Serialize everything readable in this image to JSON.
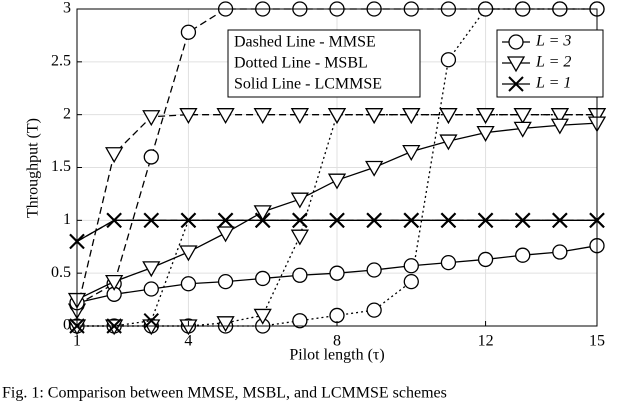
{
  "chart_data": {
    "type": "line",
    "x": [
      1,
      2,
      3,
      4,
      5,
      6,
      7,
      8,
      9,
      10,
      11,
      12,
      13,
      14,
      15
    ],
    "xlim": [
      1,
      15
    ],
    "xticks": [
      1,
      4,
      8,
      12,
      15
    ],
    "ylim": [
      0,
      3
    ],
    "yticks": [
      0,
      0.5,
      1,
      1.5,
      2,
      2.5,
      3
    ],
    "grid": true,
    "xlabel": "Pilot length (τ)",
    "ylabel": "Throughput (T)",
    "annotations": [
      "Dashed Line - MMSE",
      "Dotted Line - MSBL",
      "Solid Line - LCMMSE"
    ],
    "legend": [
      {
        "name": "L = 3",
        "marker": "circle"
      },
      {
        "name": "L = 2",
        "marker": "triangle"
      },
      {
        "name": "L = 1",
        "marker": "x"
      }
    ],
    "legend_position": "upper right",
    "caption": "Fig. 1: Comparison between MMSE, MSBL, and LCMMSE schemes",
    "series": [
      {
        "marker": "circle",
        "linestyle": "dashed",
        "color": "#000000",
        "values": [
          0.2,
          0.4,
          1.6,
          2.78,
          3,
          3,
          3,
          3,
          3,
          3,
          3,
          3,
          3,
          3,
          3
        ]
      },
      {
        "marker": "triangle",
        "linestyle": "dashed",
        "color": "#000000",
        "values": [
          0.15,
          1.63,
          1.98,
          2,
          2,
          2,
          2,
          2,
          2,
          2,
          2,
          2,
          2,
          2,
          2
        ]
      },
      {
        "marker": "x",
        "linestyle": "dashed",
        "color": "#000000",
        "values": [
          0.8,
          1,
          1,
          1,
          1,
          1,
          1,
          1,
          1,
          1,
          1,
          1,
          1,
          1,
          1
        ]
      },
      {
        "marker": "circle",
        "linestyle": "dotted",
        "color": "#000000",
        "values": [
          0,
          0,
          0,
          0,
          0,
          0,
          0.05,
          0.1,
          0.15,
          0.42,
          2.52,
          3,
          3,
          3,
          3
        ]
      },
      {
        "marker": "triangle",
        "linestyle": "dotted",
        "color": "#000000",
        "values": [
          0,
          0,
          0,
          0,
          0.03,
          0.1,
          0.85,
          2,
          2,
          2,
          2,
          2,
          2,
          2,
          2
        ]
      },
      {
        "marker": "x",
        "linestyle": "dotted",
        "color": "#000000",
        "values": [
          0,
          0,
          0.05,
          1,
          1,
          1,
          1,
          1,
          1,
          1,
          1,
          1,
          1,
          1,
          1
        ]
      },
      {
        "marker": "circle",
        "linestyle": "solid",
        "color": "#000000",
        "values": [
          0.22,
          0.3,
          0.35,
          0.4,
          0.42,
          0.45,
          0.48,
          0.5,
          0.53,
          0.57,
          0.6,
          0.63,
          0.67,
          0.7,
          0.76
        ]
      },
      {
        "marker": "triangle",
        "linestyle": "solid",
        "color": "#000000",
        "values": [
          0.25,
          0.42,
          0.55,
          0.7,
          0.88,
          1.08,
          1.2,
          1.38,
          1.5,
          1.65,
          1.75,
          1.83,
          1.87,
          1.9,
          1.92
        ]
      },
      {
        "marker": "x",
        "linestyle": "solid",
        "color": "#000000",
        "values": [
          0.8,
          1,
          1,
          1,
          1,
          1,
          1,
          1,
          1,
          1,
          1,
          1,
          1,
          1,
          1
        ]
      }
    ]
  }
}
